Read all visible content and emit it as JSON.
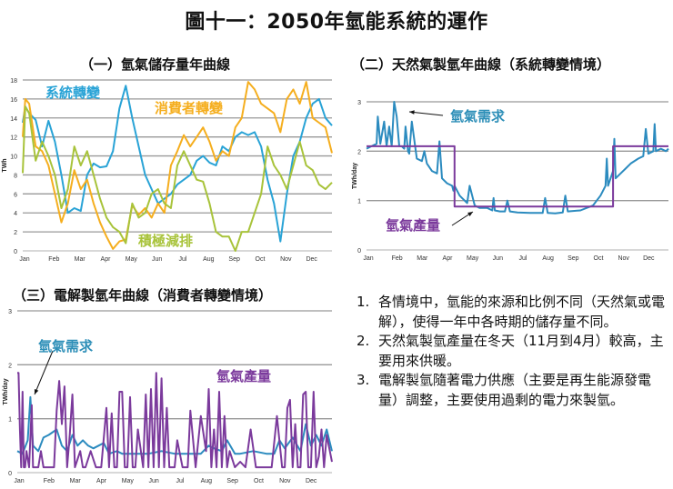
{
  "page": {
    "title": "圖十一：2050年氫能系統的運作"
  },
  "colors": {
    "blue": "#29a3d6",
    "orange": "#f5ae1e",
    "green": "#a8c33a",
    "demand_blue": "#2b8bbf",
    "production_purple": "#7b3a9c",
    "demand_label": "#2e8fb8",
    "production_label": "#7b3a9c",
    "grid": "#999999"
  },
  "notes": [
    {
      "num": "1.",
      "text": "各情境中，氫能的來源和比例不同（天然氣或電解），使得一年中各時期的儲存量不同。"
    },
    {
      "num": "2.",
      "text": "天然氣製氫產量在冬天（11月到4月）較高，主要用來供暖。"
    },
    {
      "num": "3.",
      "text": "電解製氫隨著電力供應（主要是再生能源發電量）調整，主要使用過剩的電力來製氫。"
    }
  ],
  "chart_data": [
    {
      "type": "line",
      "title": "（一）氫氣儲存量年曲線",
      "xlabel": "",
      "ylabel": "TWh",
      "ylim": [
        0,
        18
      ],
      "yticks": [
        0,
        2,
        4,
        6,
        8,
        10,
        12,
        14,
        16,
        18
      ],
      "categories": [
        "Jan",
        "Feb",
        "Mar",
        "Apr",
        "May",
        "Jun",
        "Jul",
        "Aug",
        "Sep",
        "Oct",
        "Nov",
        "Dec"
      ],
      "grid": true,
      "legend": "inline labels",
      "x": [
        0,
        0.1,
        0.25,
        0.5,
        0.75,
        1,
        1.25,
        1.5,
        1.75,
        2,
        2.25,
        2.5,
        2.75,
        3,
        3.25,
        3.5,
        3.75,
        4,
        4.25,
        4.5,
        4.75,
        5,
        5.25,
        5.5,
        5.75,
        6,
        6.25,
        6.5,
        6.75,
        7,
        7.25,
        7.5,
        7.75,
        8,
        8.25,
        8.5,
        8.75,
        9,
        9.25,
        9.5,
        9.75,
        10,
        10.25,
        10.5,
        10.75,
        11,
        11.25,
        11.5,
        11.75,
        12
      ],
      "series": [
        {
          "name": "系統轉變",
          "color_key": "blue",
          "values": [
            13.5,
            15.2,
            14.5,
            13.8,
            11,
            13.7,
            11.5,
            8,
            4,
            4.5,
            4.2,
            8,
            9.2,
            8.8,
            8.9,
            10.5,
            15,
            17.4,
            14,
            11,
            8,
            6.5,
            5,
            5.5,
            6,
            7,
            7.5,
            8,
            9.5,
            10,
            9.3,
            9,
            11,
            10.5,
            12,
            12.5,
            12.2,
            12.5,
            11,
            7.5,
            5,
            1,
            6,
            10,
            11.5,
            14,
            15.5,
            16,
            14,
            13.2
          ]
        },
        {
          "name": "消費者轉變",
          "color_key": "orange",
          "values": [
            12,
            16,
            15.5,
            11,
            10.5,
            9,
            6,
            3,
            5,
            8.5,
            6.5,
            7.5,
            5,
            3,
            1.5,
            0.2,
            1,
            1.2,
            4.8,
            3.8,
            4.5,
            3.5,
            5,
            4,
            9,
            10.5,
            12.2,
            11,
            12,
            13,
            11.5,
            9.5,
            10.5,
            10,
            13,
            14,
            17.8,
            17,
            15.5,
            15,
            14.5,
            12.5,
            16,
            17,
            15.5,
            17.8,
            14,
            13.5,
            13,
            10.3
          ]
        },
        {
          "name": "積極減排",
          "color_key": "green",
          "values": [
            8.2,
            15.2,
            14.5,
            9.5,
            11.5,
            10,
            8,
            4.5,
            6.5,
            11,
            9,
            10.5,
            8,
            5.5,
            3.5,
            2.5,
            2,
            0.8,
            5,
            3.5,
            4,
            6,
            6.5,
            5,
            4.5,
            9,
            10.5,
            9,
            7.5,
            7.3,
            5,
            2,
            1.5,
            1.5,
            0,
            2,
            2,
            4,
            6,
            11,
            9,
            8,
            6.5,
            9,
            11.5,
            9,
            8.5,
            7,
            6.5,
            7.2
          ]
        }
      ],
      "annotations": [
        {
          "text": "系統轉變",
          "color_key": "blue"
        },
        {
          "text": "消費者轉變",
          "color_key": "orange"
        },
        {
          "text": "積極減排",
          "color_key": "green"
        }
      ]
    },
    {
      "type": "line",
      "title": "（二）天然氣製氫年曲線（系統轉變情境）",
      "xlabel": "",
      "ylabel": "TWh/day",
      "ylim": [
        0,
        3
      ],
      "yticks": [
        0,
        1,
        2,
        3
      ],
      "categories": [
        "Jan",
        "Feb",
        "Mar",
        "Apr",
        "May",
        "Jun",
        "Jul",
        "Aug",
        "Sep",
        "Oct",
        "Nov",
        "Dec"
      ],
      "grid": true,
      "legend": "inline labels with arrows",
      "series": [
        {
          "name": "氫氣需求",
          "color_key": "demand_blue",
          "x": [
            0,
            0.2,
            0.4,
            0.45,
            0.55,
            0.7,
            0.8,
            0.9,
            1.0,
            1.1,
            1.2,
            1.3,
            1.4,
            1.5,
            1.55,
            1.65,
            1.7,
            1.8,
            2.0,
            2.2,
            2.3,
            2.4,
            2.6,
            2.8,
            2.9,
            3.0,
            3.2,
            3.4,
            3.45,
            3.5,
            3.7,
            3.8,
            4.0,
            4.1,
            4.3,
            4.5,
            4.8,
            5.0,
            5.05,
            5.1,
            5.3,
            5.5,
            5.6,
            5.7,
            6,
            6.5,
            7,
            7.1,
            7.2,
            7.5,
            7.8,
            7.9,
            8,
            8.5,
            9,
            9.3,
            9.5,
            9.55,
            9.6,
            9.8,
            9.85,
            9.9,
            10.1,
            10.3,
            10.5,
            10.8,
            11,
            11.1,
            11.2,
            11.4,
            11.45,
            11.5,
            11.7,
            11.9,
            12
          ],
          "values": [
            2.05,
            2.1,
            2.15,
            2.7,
            2.15,
            2.6,
            2.1,
            2.5,
            2.1,
            3.0,
            2.7,
            2.1,
            2.1,
            2.05,
            2.5,
            2.0,
            1.95,
            2.6,
            1.85,
            1.8,
            2.0,
            1.75,
            1.6,
            1.55,
            2.2,
            1.45,
            1.35,
            1.3,
            1.2,
            1.3,
            1.1,
            1.05,
            0.95,
            1.3,
            0.9,
            0.85,
            0.85,
            0.8,
            1.05,
            0.8,
            0.78,
            0.78,
            1.0,
            0.78,
            0.76,
            0.75,
            0.75,
            1.05,
            0.75,
            0.74,
            0.76,
            1.1,
            0.78,
            0.8,
            0.9,
            1.1,
            1.3,
            1.85,
            1.3,
            1.6,
            2.25,
            1.45,
            1.55,
            1.65,
            1.75,
            1.85,
            1.9,
            2.45,
            1.95,
            2.0,
            2.55,
            2.0,
            2.05,
            2.0,
            2.05
          ]
        },
        {
          "name": "氫氣產量",
          "color_key": "production_purple",
          "x": [
            0,
            3.5,
            3.5,
            9.8,
            9.8,
            12
          ],
          "values": [
            2.1,
            2.1,
            0.88,
            0.88,
            2.1,
            2.1
          ]
        }
      ],
      "annotations": [
        {
          "text": "氫氣需求",
          "color_key": "demand_label",
          "arrow": true
        },
        {
          "text": "氫氣產量",
          "color_key": "production_label",
          "arrow": true
        }
      ]
    },
    {
      "type": "line",
      "title": "（三）電解製氫年曲線（消費者轉變情境）",
      "xlabel": "",
      "ylabel": "TWh/day",
      "ylim": [
        0,
        3
      ],
      "yticks": [
        0,
        1,
        2,
        3
      ],
      "categories": [
        "Jan",
        "Feb",
        "Mar",
        "Apr",
        "May",
        "Jun",
        "Jul",
        "Aug",
        "Sep",
        "Oct",
        "Nov",
        "Dec"
      ],
      "grid": true,
      "legend": "inline labels with arrow",
      "series": [
        {
          "name": "氫氣需求",
          "color_key": "demand_blue",
          "x": [
            0,
            0.2,
            0.4,
            0.5,
            0.6,
            0.8,
            1.0,
            1.2,
            1.5,
            1.7,
            1.9,
            2.1,
            2.3,
            2.5,
            2.7,
            2.9,
            3.1,
            3.3,
            3.5,
            3.8,
            4,
            4.5,
            5,
            5.5,
            6,
            6.5,
            7,
            7.3,
            7.5,
            7.8,
            8,
            8.3,
            8.5,
            9,
            9.5,
            9.8,
            10,
            10.2,
            10.5,
            10.8,
            11,
            11.2,
            11.4,
            11.6,
            11.8,
            12
          ],
          "values": [
            0.4,
            0.35,
            0.6,
            1.4,
            0.5,
            0.4,
            0.65,
            0.7,
            0.8,
            0.5,
            0.4,
            0.7,
            0.5,
            0.6,
            0.5,
            0.45,
            0.5,
            0.55,
            0.35,
            0.4,
            0.35,
            0.35,
            0.35,
            0.4,
            0.35,
            0.35,
            0.35,
            0.5,
            0.45,
            0.4,
            0.6,
            0.35,
            0.35,
            0.4,
            0.35,
            0.35,
            0.6,
            0.45,
            0.65,
            0.4,
            0.9,
            0.5,
            0.7,
            0.5,
            0.8,
            0.4
          ]
        },
        {
          "name": "氫氣產量",
          "color_key": "production_purple",
          "x": [
            0,
            0.05,
            0.1,
            0.15,
            0.2,
            0.25,
            0.3,
            0.35,
            0.45,
            0.55,
            0.6,
            0.65,
            0.7,
            0.8,
            0.9,
            1.0,
            1.2,
            1.4,
            1.5,
            1.6,
            1.7,
            1.8,
            1.9,
            2.0,
            2.1,
            2.2,
            2.4,
            2.5,
            2.6,
            2.8,
            3.0,
            3.2,
            3.4,
            3.5,
            3.6,
            3.7,
            3.8,
            3.9,
            4.0,
            4.1,
            4.2,
            4.3,
            4.4,
            4.5,
            4.6,
            4.8,
            4.9,
            5.0,
            5.1,
            5.2,
            5.3,
            5.4,
            5.5,
            5.6,
            5.7,
            5.8,
            6.0,
            6.1,
            6.3,
            6.5,
            6.6,
            6.8,
            7.0,
            7.2,
            7.3,
            7.4,
            7.5,
            7.6,
            7.7,
            7.8,
            7.9,
            8.0,
            8.1,
            8.3,
            8.5,
            8.7,
            8.9,
            9.1,
            9.3,
            9.5,
            9.7,
            9.9,
            10.1,
            10.2,
            10.3,
            10.4,
            10.5,
            10.6,
            10.7,
            10.8,
            10.9,
            11.0,
            11.1,
            11.2,
            11.3,
            11.4,
            11.5,
            11.6,
            11.7,
            11.8,
            12
          ],
          "values": [
            1.85,
            1.85,
            0.8,
            0.1,
            1.5,
            0.1,
            0.1,
            0.4,
            0.1,
            1.25,
            0.1,
            0.1,
            0.1,
            0.1,
            0.4,
            0.1,
            0.1,
            0.1,
            1.15,
            1.7,
            0.9,
            1.6,
            0.1,
            0.7,
            1.45,
            0.1,
            0.4,
            0.1,
            0.1,
            0.4,
            0.1,
            0.1,
            1.2,
            0.1,
            1.1,
            0.1,
            0.1,
            1.5,
            1.5,
            0.1,
            0.1,
            1.4,
            0.1,
            0.1,
            0.8,
            0.1,
            1.45,
            0.1,
            1.55,
            0.1,
            1.85,
            0.1,
            1.75,
            0.1,
            1.2,
            0.1,
            0.1,
            0.6,
            0.1,
            0.1,
            1.15,
            0.1,
            1.05,
            0.4,
            1.55,
            0.1,
            0.8,
            0.1,
            1.5,
            0.1,
            1.05,
            0.1,
            0.4,
            0.1,
            0.2,
            0.1,
            0.8,
            0.1,
            0.1,
            0.1,
            0.1,
            1.05,
            0.1,
            0.1,
            1.2,
            1.35,
            0.1,
            0.9,
            0.1,
            0.1,
            1.45,
            1.5,
            0.1,
            0.1,
            1.5,
            0.1,
            0.3,
            0.8,
            0.1,
            0.7,
            0.2
          ]
        }
      ],
      "annotations": [
        {
          "text": "氫氣需求",
          "color_key": "demand_label",
          "arrow": true
        },
        {
          "text": "氫氣產量",
          "color_key": "production_label"
        }
      ]
    }
  ]
}
